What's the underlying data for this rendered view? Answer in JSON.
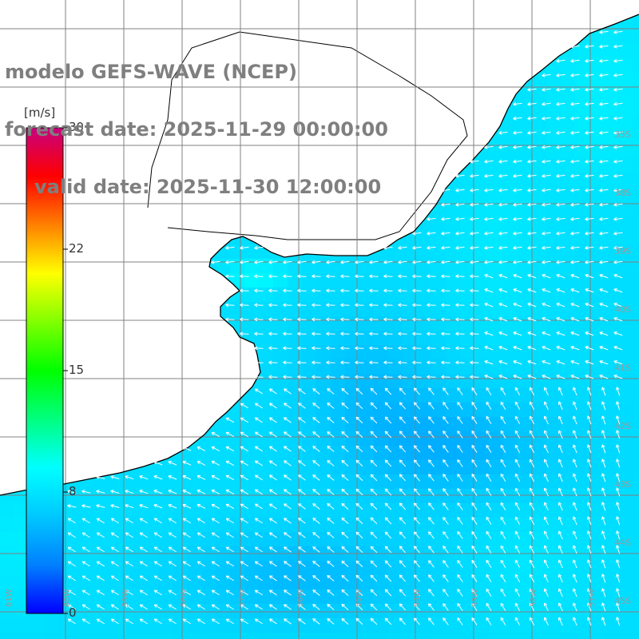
{
  "title": {
    "line1": "modelo GEFS-WAVE (NCEP)",
    "line2": "forecast date: 2025-11-29 00:00:00",
    "line3": "valid date: 2025-11-30 12:00:00"
  },
  "colorbar": {
    "unit": "[m/s]",
    "min": 0,
    "max": 30,
    "ticks": [
      "30",
      "22",
      "15",
      "8",
      "0"
    ],
    "tick_values": [
      30,
      22.5,
      15,
      7.5,
      0
    ],
    "colors": [
      "#0000ff",
      "#0080ff",
      "#00c8ff",
      "#00ffff",
      "#00ff80",
      "#00ff00",
      "#80ff00",
      "#ffff00",
      "#ff8000",
      "#ff0000",
      "#c8007e"
    ]
  },
  "map": {
    "lat_labels": [
      "35S",
      "38S",
      "39S",
      "40S",
      "41S",
      "42S",
      "43S",
      "44S",
      "45S"
    ],
    "lon_labels": [
      "61W",
      "60W",
      "59W",
      "58W",
      "57W",
      "56W",
      "55W",
      "54W",
      "53W",
      "52W",
      "51W"
    ],
    "land_color": "#ffffff",
    "grid_color": "#808080",
    "coast_color": "#000000",
    "dominant_wind_speed_ms": [
      6,
      9
    ],
    "dominant_direction": "easterly (arrows point toward coast / west-southwest)"
  }
}
